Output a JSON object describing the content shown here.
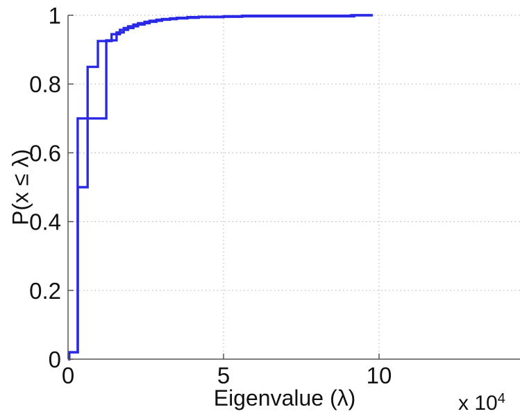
{
  "figure": {
    "background": "#ffffff",
    "xlabel": "Eigenvalue (λ)",
    "ylabel": "P(x ≤ λ)",
    "axis_multiplier": {
      "base": "x 10",
      "exponent": "4"
    }
  },
  "chart_data": {
    "type": "line",
    "subtype": "empirical-cdf-steps",
    "title": "",
    "xlabel": "Eigenvalue (λ)",
    "ylabel": "P(x ≤ λ)",
    "x_unit_multiplier": "x 10^4",
    "xlim": [
      0,
      14.53
    ],
    "ylim": [
      0,
      1
    ],
    "xticks": [
      {
        "v": 0,
        "label": "0"
      },
      {
        "v": 5,
        "label": "5"
      },
      {
        "v": 10,
        "label": "10"
      }
    ],
    "yticks": [
      {
        "v": 0,
        "label": "0"
      },
      {
        "v": 0.2,
        "label": "0.2"
      },
      {
        "v": 0.4,
        "label": "0.4"
      },
      {
        "v": 0.6,
        "label": "0.6"
      },
      {
        "v": 0.8,
        "label": "0.8"
      },
      {
        "v": 1,
        "label": "1"
      }
    ],
    "grid": "dotted",
    "legend": "none",
    "colors": {
      "line": "#2a2ae6",
      "grid": "#b9b9b9",
      "axis": "#555555",
      "text": "#111111"
    },
    "series": [
      {
        "name": "ecdf-curve-a",
        "start": [
          0,
          0
        ],
        "end_x": 9.8,
        "jumps": [
          [
            0.03,
            0.02
          ],
          [
            0.31,
            0.7
          ],
          [
            1.23,
            0.927
          ],
          [
            1.56,
            0.95
          ],
          [
            1.79,
            0.963
          ],
          [
            2.1,
            0.973
          ],
          [
            2.46,
            0.981
          ],
          [
            2.84,
            0.987
          ],
          [
            3.28,
            0.991
          ],
          [
            3.84,
            0.9945
          ],
          [
            5.0,
            0.997
          ],
          [
            9.2,
            1.0
          ]
        ]
      },
      {
        "name": "ecdf-curve-b",
        "start": [
          0,
          0
        ],
        "end_x": 9.78,
        "jumps": [
          [
            0.04,
            0.02
          ],
          [
            0.315,
            0.5
          ],
          [
            0.63,
            0.85
          ],
          [
            0.96,
            0.925
          ],
          [
            1.4,
            0.945
          ],
          [
            1.67,
            0.9575
          ],
          [
            1.93,
            0.968
          ],
          [
            2.25,
            0.977
          ],
          [
            2.62,
            0.984
          ],
          [
            3.02,
            0.989
          ],
          [
            3.5,
            0.9925
          ],
          [
            4.2,
            0.9955
          ],
          [
            5.6,
            0.9985
          ],
          [
            9.1,
            1.0
          ]
        ]
      }
    ]
  }
}
